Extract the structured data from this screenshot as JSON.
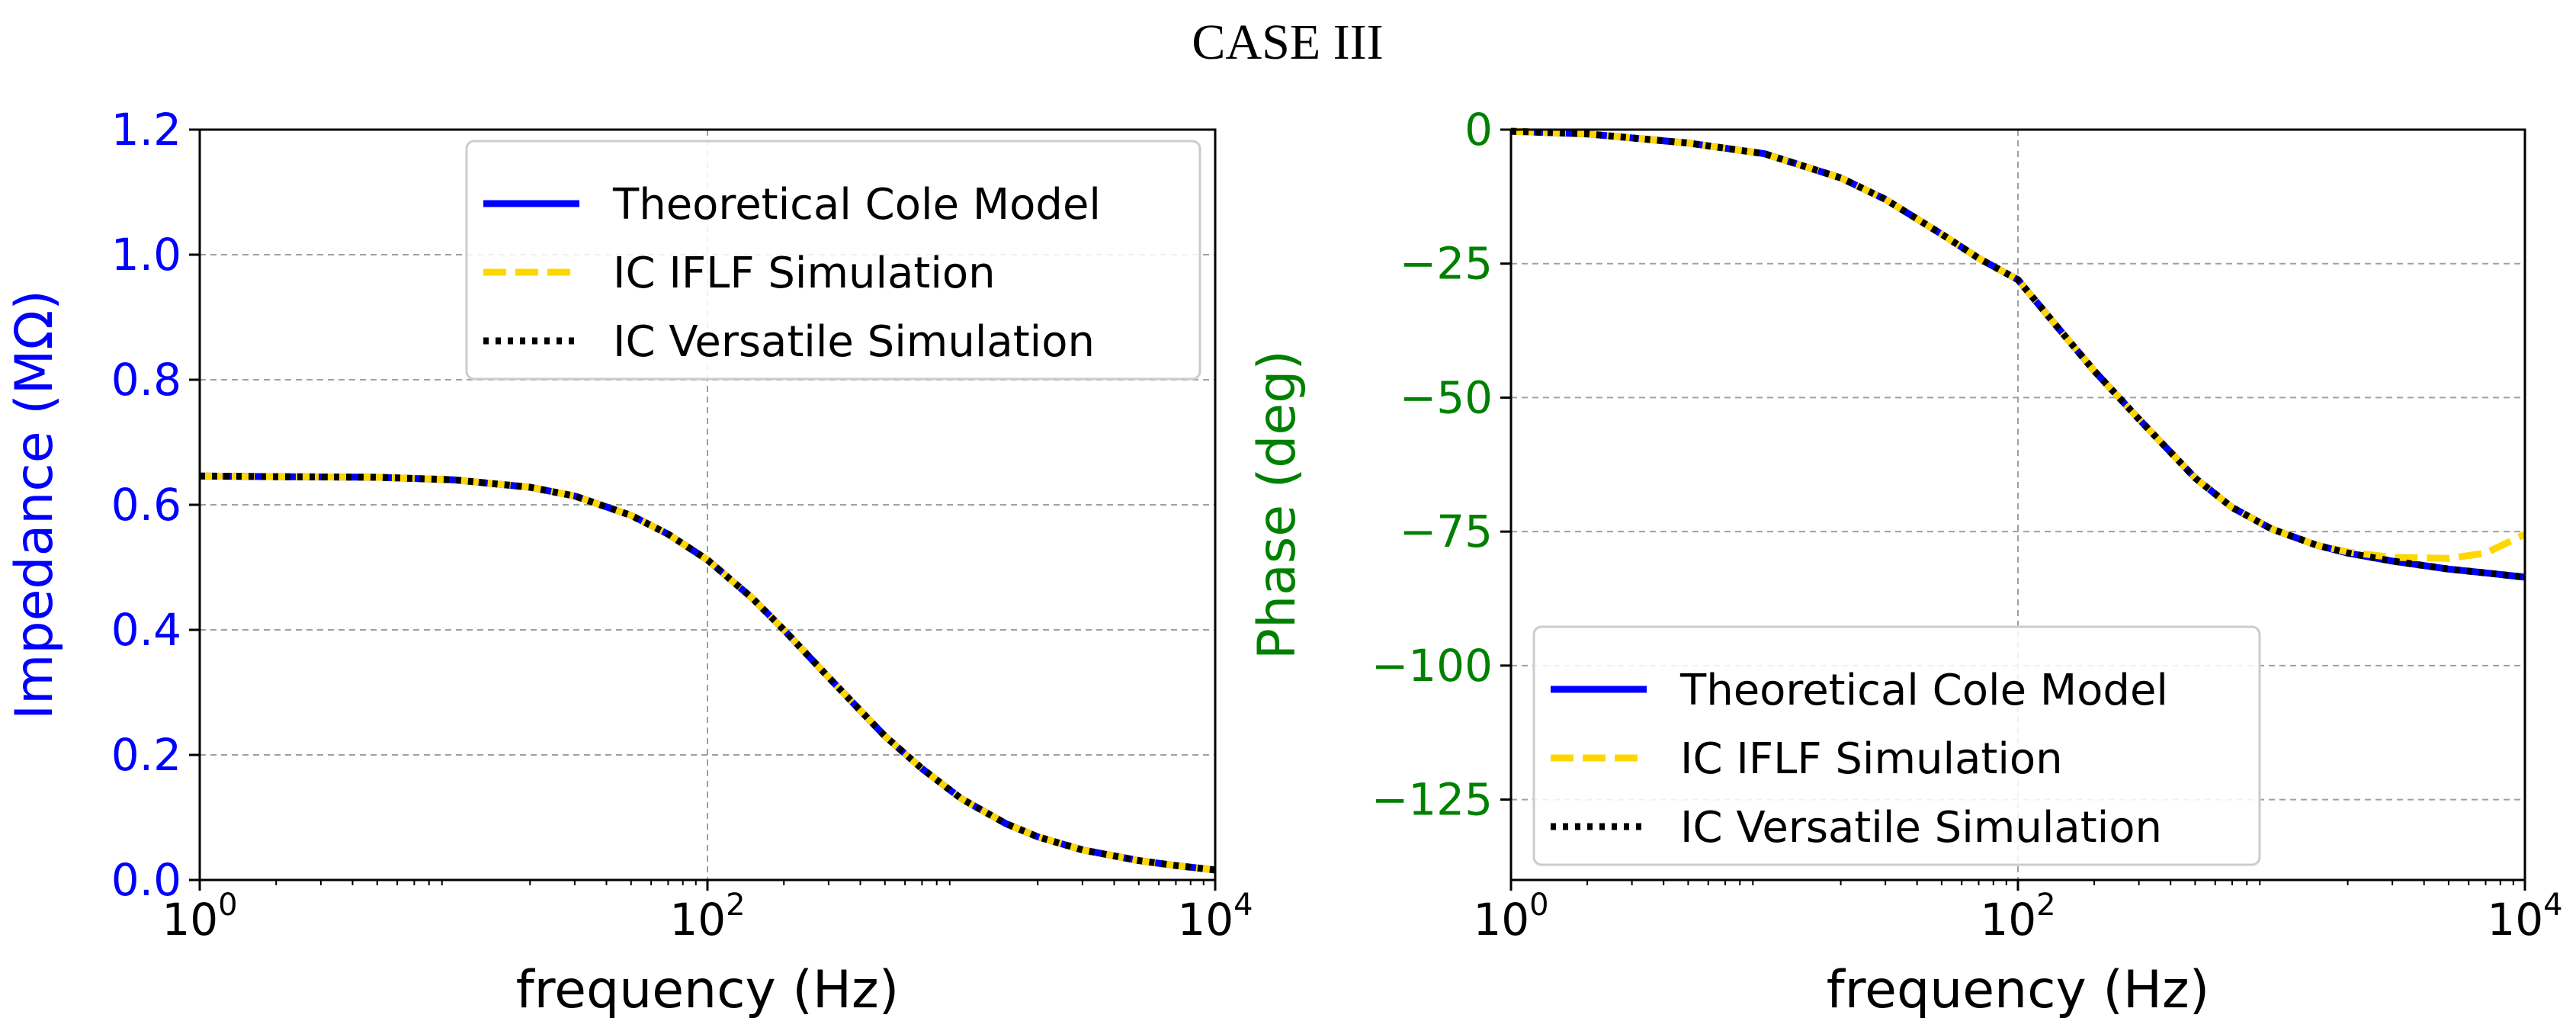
{
  "figure_title": "CASE III",
  "colors": {
    "theoretical": "#0000ff",
    "iflf": "#ffd700",
    "versatile": "#000000",
    "left_axis_label": "#0000ff",
    "right_axis_label": "#008000",
    "grid": "#a0a0a0"
  },
  "chart_data": [
    {
      "type": "line",
      "title": "",
      "xlabel": "frequency (Hz)",
      "ylabel": "Impedance (MΩ)",
      "xscale": "log",
      "xlim": [
        1,
        10000
      ],
      "ylim": [
        0,
        1.2
      ],
      "x_ticks": [
        {
          "base": "10",
          "exp": "0"
        },
        {
          "base": "10",
          "exp": "2"
        },
        {
          "base": "10",
          "exp": "4"
        }
      ],
      "y_ticks": [
        "0.0",
        "0.2",
        "0.4",
        "0.6",
        "0.8",
        "1.0",
        "1.2"
      ],
      "grid": true,
      "legend_position": "upper-right",
      "x": [
        1,
        2,
        5,
        10,
        20,
        30,
        50,
        70,
        100,
        150,
        200,
        300,
        500,
        700,
        1000,
        1500,
        2000,
        3000,
        5000,
        7000,
        10000
      ],
      "series": [
        {
          "name": "Theoretical Cole Model",
          "style": "solid",
          "values": [
            0.646,
            0.645,
            0.644,
            0.64,
            0.628,
            0.614,
            0.583,
            0.553,
            0.512,
            0.451,
            0.4,
            0.324,
            0.23,
            0.178,
            0.13,
            0.09,
            0.069,
            0.048,
            0.031,
            0.023,
            0.016
          ]
        },
        {
          "name": "IC IFLF Simulation",
          "style": "dashed",
          "values": [
            0.646,
            0.645,
            0.644,
            0.64,
            0.628,
            0.614,
            0.583,
            0.553,
            0.512,
            0.451,
            0.4,
            0.324,
            0.23,
            0.178,
            0.13,
            0.09,
            0.069,
            0.048,
            0.031,
            0.023,
            0.016
          ]
        },
        {
          "name": "IC Versatile Simulation",
          "style": "dotted",
          "values": [
            0.646,
            0.645,
            0.644,
            0.64,
            0.628,
            0.614,
            0.583,
            0.553,
            0.512,
            0.451,
            0.4,
            0.324,
            0.23,
            0.178,
            0.13,
            0.09,
            0.069,
            0.048,
            0.031,
            0.023,
            0.016
          ]
        }
      ]
    },
    {
      "type": "line",
      "title": "",
      "xlabel": "frequency (Hz)",
      "ylabel": "Phase (deg)",
      "xscale": "log",
      "xlim": [
        1,
        10000
      ],
      "ylim": [
        -140,
        0
      ],
      "x_ticks": [
        {
          "base": "10",
          "exp": "0"
        },
        {
          "base": "10",
          "exp": "2"
        },
        {
          "base": "10",
          "exp": "4"
        }
      ],
      "y_ticks": [
        "0",
        "−25",
        "−50",
        "−75",
        "−100",
        "−125"
      ],
      "y_tick_values": [
        0,
        -25,
        -50,
        -75,
        -100,
        -125
      ],
      "grid": true,
      "legend_position": "lower-left",
      "x": [
        1,
        2,
        5,
        10,
        20,
        30,
        50,
        70,
        100,
        150,
        200,
        300,
        500,
        700,
        1000,
        1500,
        2000,
        3000,
        5000,
        7000,
        10000
      ],
      "series": [
        {
          "name": "Theoretical Cole Model",
          "style": "solid",
          "values": [
            -0.3,
            -0.8,
            -2.5,
            -4.5,
            -9.0,
            -13.0,
            -19.5,
            -24.0,
            -28.0,
            -38.0,
            -45.0,
            -54.0,
            -65.0,
            -70.5,
            -74.5,
            -77.5,
            -79.0,
            -80.5,
            -82.0,
            -82.7,
            -83.5
          ]
        },
        {
          "name": "IC IFLF Simulation",
          "style": "dashed",
          "values": [
            -0.3,
            -0.8,
            -2.5,
            -4.5,
            -9.0,
            -13.0,
            -19.5,
            -24.0,
            -28.0,
            -38.0,
            -45.0,
            -54.0,
            -65.0,
            -70.5,
            -74.5,
            -77.5,
            -78.8,
            -79.8,
            -80.0,
            -79.0,
            -75.5
          ]
        },
        {
          "name": "IC Versatile Simulation",
          "style": "dotted",
          "values": [
            -0.3,
            -0.8,
            -2.5,
            -4.5,
            -9.0,
            -13.0,
            -19.5,
            -24.0,
            -28.0,
            -38.0,
            -45.0,
            -54.0,
            -65.0,
            -70.5,
            -74.5,
            -77.5,
            -79.0,
            -80.5,
            -82.0,
            -82.7,
            -83.5
          ]
        }
      ]
    }
  ]
}
